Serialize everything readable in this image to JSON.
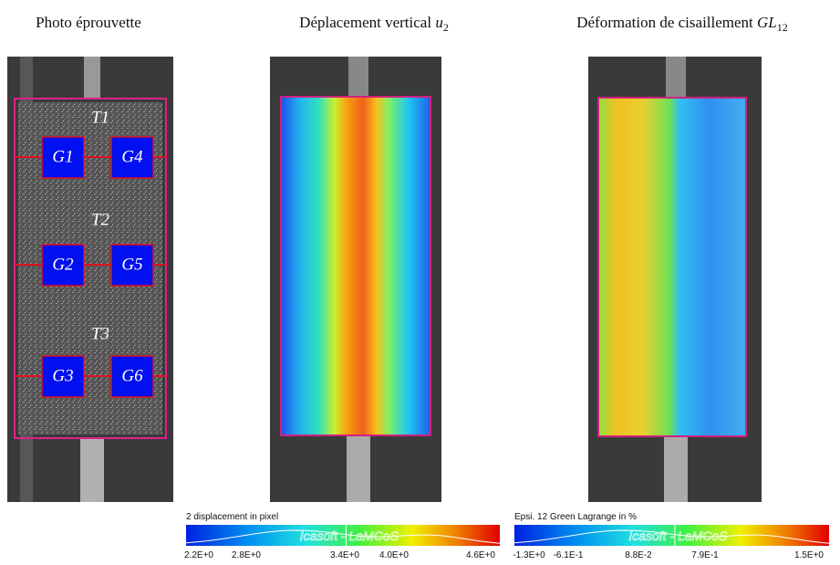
{
  "panels": [
    {
      "title": {
        "text": "Photo éprouvette"
      },
      "gauges": [
        "G1",
        "G4",
        "G2",
        "G5",
        "G3",
        "G6"
      ],
      "zones": [
        "T1",
        "T2",
        "T3"
      ]
    },
    {
      "title": {
        "text": "Déplacement vertical",
        "symbol": "u",
        "subscript": "2"
      },
      "colorbar": {
        "title": "2 displacement in pixel",
        "watermark": "Icasoft - LaMCoS",
        "ticks": [
          "2.2E+0",
          "2.8E+0",
          "3.4E+0",
          "4.0E+0",
          "4.6E+0"
        ]
      }
    },
    {
      "title": {
        "text": "Déformation de cisaillement",
        "symbol": "GL",
        "subscript": "12"
      },
      "colorbar": {
        "title": "Epsi. 12 Green Lagrange in %",
        "watermark": "Icasoft - LaMCoS",
        "ticks": [
          "-1.3E+0",
          "-6.1E-1",
          "8.8E-2",
          "7.9E-1",
          "1.5E+0"
        ]
      }
    }
  ]
}
